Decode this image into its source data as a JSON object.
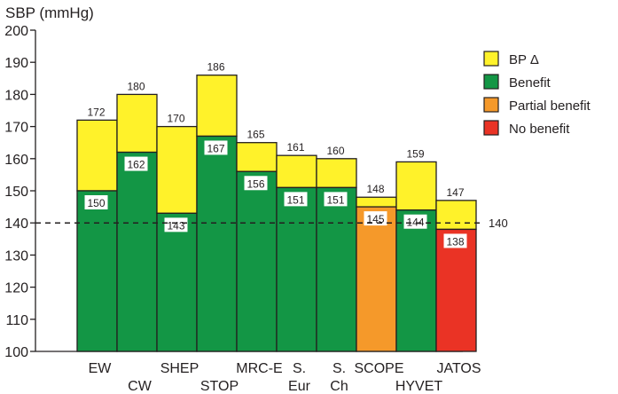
{
  "colors": {
    "bp_delta": "#fff22a",
    "benefit": "#139645",
    "partial": "#f5992a",
    "none": "#ea3325",
    "outline": "#231f20"
  },
  "chart_data": {
    "type": "bar",
    "ylabel": "SBP (mmHg)",
    "ylim": [
      100,
      200
    ],
    "yticks": [
      "100",
      "110",
      "120",
      "130",
      "140",
      "150",
      "160",
      "170",
      "180",
      "190",
      "200"
    ],
    "reference_line": {
      "value": 140,
      "label": "140",
      "style": "dashed"
    },
    "legend_position": "top-right",
    "legend": [
      {
        "label": "BP Δ",
        "color": "#fff22a"
      },
      {
        "label": "Benefit",
        "color": "#139645"
      },
      {
        "label": "Partial benefit",
        "color": "#f5992a"
      },
      {
        "label": "No benefit",
        "color": "#ea3325"
      }
    ],
    "bars": [
      {
        "name": "EW",
        "label_lines": [
          "EW"
        ],
        "label_row": 1,
        "top": 172,
        "achieved": 150,
        "top_label": "172",
        "achieved_label": "150",
        "category": "Benefit"
      },
      {
        "name": "CW",
        "label_lines": [
          "CW"
        ],
        "label_row": 2,
        "top": 180,
        "achieved": 162,
        "top_label": "180",
        "achieved_label": "162",
        "category": "Benefit"
      },
      {
        "name": "SHEP",
        "label_lines": [
          "SHEP"
        ],
        "label_row": 1,
        "top": 170,
        "achieved": 143,
        "top_label": "170",
        "achieved_label": "143",
        "category": "Benefit"
      },
      {
        "name": "STOP",
        "label_lines": [
          "STOP"
        ],
        "label_row": 2,
        "top": 186,
        "achieved": 167,
        "top_label": "186",
        "achieved_label": "167",
        "category": "Benefit"
      },
      {
        "name": "MRC-E",
        "label_lines": [
          "MRC-E"
        ],
        "label_row": 1,
        "top": 165,
        "achieved": 156,
        "top_label": "165",
        "achieved_label": "156",
        "category": "Benefit"
      },
      {
        "name": "S. Eur",
        "label_lines": [
          "S.",
          "Eur"
        ],
        "label_row": 1,
        "top": 161,
        "achieved": 151,
        "top_label": "161",
        "achieved_label": "151",
        "category": "Benefit"
      },
      {
        "name": "S. Ch",
        "label_lines": [
          "S.",
          "Ch"
        ],
        "label_row": 1,
        "top": 160,
        "achieved": 151,
        "top_label": "160",
        "achieved_label": "151",
        "category": "Benefit"
      },
      {
        "name": "SCOPE",
        "label_lines": [
          "SCOPE"
        ],
        "label_row": 1,
        "top": 148,
        "achieved": 145,
        "top_label": "148",
        "achieved_label": "145",
        "category": "Partial benefit"
      },
      {
        "name": "HYVET",
        "label_lines": [
          "HYVET"
        ],
        "label_row": 2,
        "top": 159,
        "achieved": 144,
        "top_label": "159",
        "achieved_label": "144",
        "category": "Benefit"
      },
      {
        "name": "JATOS",
        "label_lines": [
          "JATOS"
        ],
        "label_row": 1,
        "top": 147,
        "achieved": 138,
        "top_label": "147",
        "achieved_label": "138",
        "category": "No benefit"
      }
    ]
  }
}
